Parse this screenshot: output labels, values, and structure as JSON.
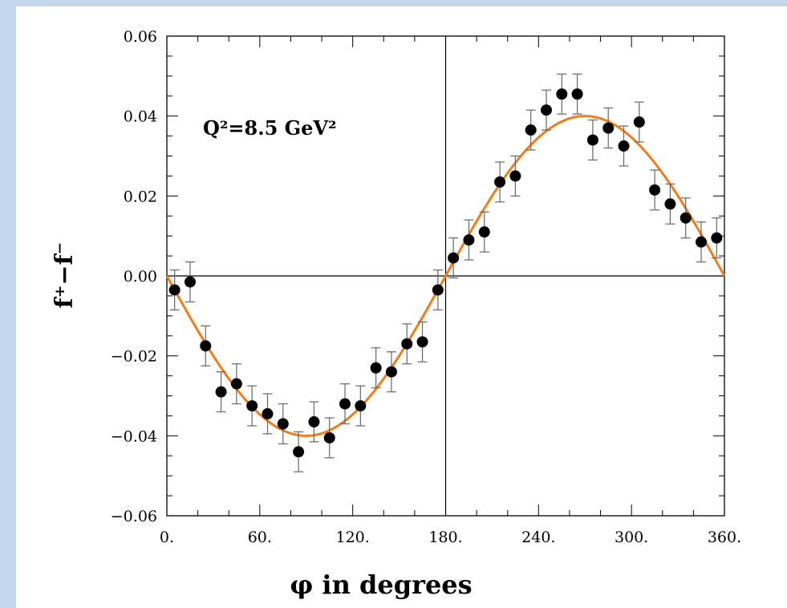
{
  "chart_data": {
    "type": "scatter",
    "title": "",
    "xlabel": "φ in degrees",
    "ylabel": "f⁺−f⁻",
    "annotation": "Q²=8.5  GeV²",
    "xlim": [
      0,
      360
    ],
    "ylim": [
      -0.06,
      0.06
    ],
    "x_ticks": [
      0,
      60,
      120,
      180,
      240,
      300,
      360
    ],
    "x_tick_labels": [
      "0.",
      "60.",
      "120.",
      "180.",
      "240.",
      "300.",
      "360."
    ],
    "y_ticks": [
      -0.06,
      -0.04,
      -0.02,
      0.0,
      0.02,
      0.04,
      0.06
    ],
    "y_tick_labels": [
      "−0.06",
      "−0.04",
      "−0.02",
      "0.00",
      "0.02",
      "0.04",
      "0.06"
    ],
    "reference_lines": {
      "x": 180,
      "y": 0
    },
    "series": [
      {
        "kind": "points",
        "color": "#000000",
        "x": [
          5,
          15,
          25,
          35,
          45,
          55,
          65,
          75,
          85,
          95,
          105,
          115,
          125,
          135,
          145,
          155,
          165,
          175,
          185,
          195,
          205,
          215,
          225,
          235,
          245,
          255,
          265,
          275,
          285,
          295,
          305,
          315,
          325,
          335,
          345,
          355
        ],
        "y": [
          -0.0035,
          -0.0015,
          -0.0175,
          -0.029,
          -0.027,
          -0.0325,
          -0.0345,
          -0.037,
          -0.044,
          -0.0365,
          -0.0405,
          -0.032,
          -0.0325,
          -0.023,
          -0.024,
          -0.017,
          -0.0165,
          -0.0035,
          0.0045,
          0.009,
          0.011,
          0.0235,
          0.025,
          0.0365,
          0.0415,
          0.0455,
          0.0455,
          0.034,
          0.037,
          0.0325,
          0.0385,
          0.0215,
          0.018,
          0.0145,
          0.0085,
          0.0095
        ],
        "error": 0.005
      },
      {
        "kind": "curve",
        "color": "#f07d1a",
        "function": "y = -0.04 * sin(x)",
        "amplitude": 0.04
      }
    ]
  }
}
